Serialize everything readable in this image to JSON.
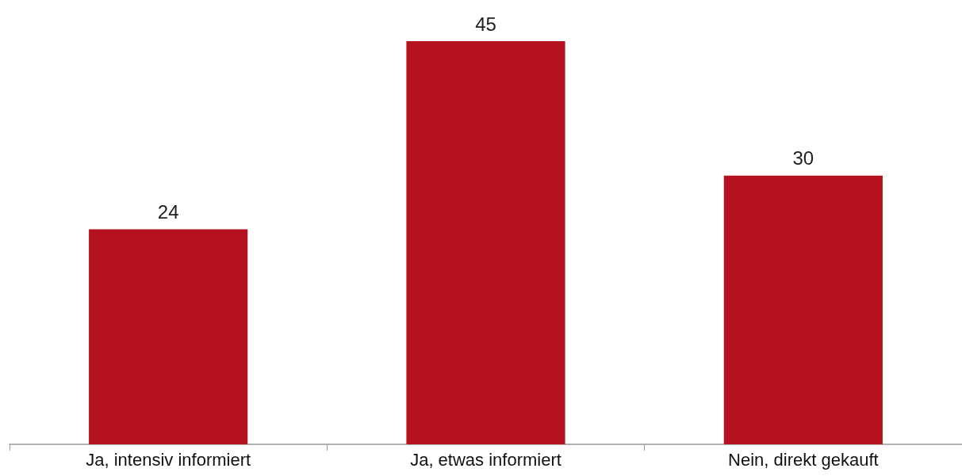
{
  "chart_data": {
    "type": "bar",
    "categories": [
      "Ja, intensiv informiert",
      "Ja, etwas informiert",
      "Nein, direkt gekauft"
    ],
    "values": [
      24,
      45,
      30
    ],
    "color": "#b5121f",
    "data_labels": true
  }
}
